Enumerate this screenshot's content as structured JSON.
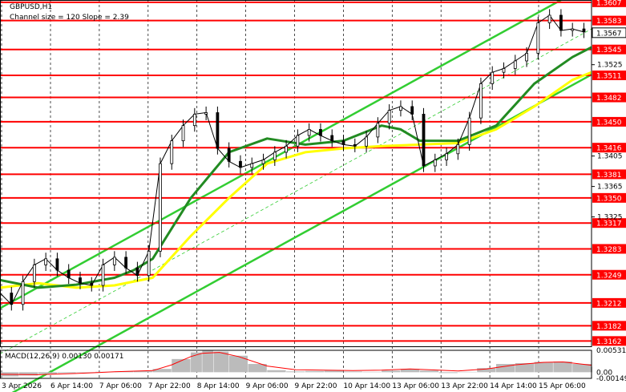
{
  "chart_data": [
    {
      "type": "candlestick",
      "symbol_label": "GBPUSD,H1",
      "channel_label": "Channel size = 120 Slope = 2.39",
      "current_price": "1.3567",
      "ylim": [
        1.3155,
        1.361
      ],
      "yticks": [
        "1.3525",
        "1.3405",
        "1.3365",
        "1.3325"
      ],
      "levels": [
        "1.3607",
        "1.3583",
        "1.3545",
        "1.3511",
        "1.3482",
        "1.3450",
        "1.3416",
        "1.3381",
        "1.3350",
        "1.3317",
        "1.3283",
        "1.3249",
        "1.3212",
        "1.3182",
        "1.3162"
      ],
      "x_labels": [
        "3 Apr 2026",
        "6 Apr 14:00",
        "7 Apr 06:00",
        "7 Apr 22:00",
        "8 Apr 14:00",
        "9 Apr 06:00",
        "9 Apr 22:00",
        "10 Apr 14:00",
        "13 Apr 06:00",
        "13 Apr 22:00",
        "14 Apr 14:00",
        "15 Apr 06:00"
      ],
      "close_points": [
        [
          0,
          1.3225
        ],
        [
          6,
          1.321
        ],
        [
          12,
          1.324
        ],
        [
          18,
          1.3262
        ],
        [
          24,
          1.327
        ],
        [
          30,
          1.3255
        ],
        [
          36,
          1.3245
        ],
        [
          42,
          1.3238
        ],
        [
          48,
          1.3235
        ],
        [
          54,
          1.3262
        ],
        [
          60,
          1.3272
        ],
        [
          66,
          1.3258
        ],
        [
          72,
          1.3248
        ],
        [
          78,
          1.328
        ],
        [
          84,
          1.3395
        ],
        [
          90,
          1.3425
        ],
        [
          96,
          1.3445
        ],
        [
          102,
          1.346
        ],
        [
          108,
          1.3462
        ],
        [
          114,
          1.3415
        ],
        [
          120,
          1.3398
        ],
        [
          126,
          1.339
        ],
        [
          132,
          1.3395
        ],
        [
          138,
          1.34
        ],
        [
          144,
          1.341
        ],
        [
          150,
          1.3418
        ],
        [
          156,
          1.3432
        ],
        [
          162,
          1.344
        ],
        [
          168,
          1.3432
        ],
        [
          174,
          1.3425
        ],
        [
          180,
          1.342
        ],
        [
          186,
          1.3418
        ],
        [
          192,
          1.343
        ],
        [
          198,
          1.3448
        ],
        [
          204,
          1.3465
        ],
        [
          210,
          1.347
        ],
        [
          216,
          1.346
        ],
        [
          222,
          1.3392
        ],
        [
          228,
          1.34
        ],
        [
          234,
          1.3408
        ],
        [
          240,
          1.342
        ],
        [
          246,
          1.3455
        ],
        [
          252,
          1.35
        ],
        [
          258,
          1.3515
        ],
        [
          264,
          1.352
        ],
        [
          270,
          1.353
        ],
        [
          276,
          1.354
        ],
        [
          282,
          1.358
        ],
        [
          288,
          1.359
        ],
        [
          294,
          1.357
        ],
        [
          300,
          1.3572
        ],
        [
          306,
          1.3568
        ]
      ],
      "series": [
        {
          "name": "",
          "color": "#ffff00",
          "values": [
            [
              0,
              1.3232
            ],
            [
              20,
              1.3238
            ],
            [
              40,
              1.3232
            ],
            [
              60,
              1.3235
            ],
            [
              80,
              1.3245
            ],
            [
              100,
              1.33
            ],
            [
              120,
              1.335
            ],
            [
              140,
              1.3395
            ],
            [
              160,
              1.341
            ],
            [
              180,
              1.3415
            ],
            [
              200,
              1.3418
            ],
            [
              220,
              1.342
            ],
            [
              240,
              1.3422
            ],
            [
              260,
              1.344
            ],
            [
              280,
              1.347
            ],
            [
              300,
              1.3505
            ],
            [
              310,
              1.3515
            ]
          ]
        },
        {
          "name": "",
          "color": "#228b22",
          "values": [
            [
              0,
              1.3242
            ],
            [
              20,
              1.3232
            ],
            [
              40,
              1.3236
            ],
            [
              60,
              1.3245
            ],
            [
              70,
              1.3255
            ],
            [
              80,
              1.327
            ],
            [
              100,
              1.335
            ],
            [
              120,
              1.341
            ],
            [
              140,
              1.3428
            ],
            [
              160,
              1.342
            ],
            [
              180,
              1.3425
            ],
            [
              200,
              1.3445
            ],
            [
              210,
              1.344
            ],
            [
              220,
              1.3425
            ],
            [
              240,
              1.3425
            ],
            [
              260,
              1.3445
            ],
            [
              280,
              1.35
            ],
            [
              300,
              1.3535
            ],
            [
              310,
              1.3548
            ]
          ]
        }
      ],
      "channel": {
        "lower": [
          [
            0,
            1.3085
          ],
          [
            310,
            1.3512
          ]
        ],
        "upper": [
          [
            0,
            1.3205
          ],
          [
            310,
            1.3632
          ]
        ]
      },
      "macd": {
        "label": "MACD(12,26,9) 0.00130 0.00171",
        "yticks": [
          "0.00531",
          "0.00",
          "-0.00149"
        ],
        "ylim": [
          -0.00149,
          0.00531
        ],
        "histogram": [
          [
            0,
            -0.001
          ],
          [
            10,
            -0.0008
          ],
          [
            20,
            -0.0004
          ],
          [
            30,
            -0.0002
          ],
          [
            40,
            0.0
          ],
          [
            50,
            0.0001
          ],
          [
            60,
            0.0002
          ],
          [
            70,
            0.0003
          ],
          [
            80,
            0.0008
          ],
          [
            90,
            0.0032
          ],
          [
            100,
            0.0048
          ],
          [
            106,
            0.0052
          ],
          [
            112,
            0.005
          ],
          [
            120,
            0.004
          ],
          [
            130,
            0.002
          ],
          [
            140,
            0.0005
          ],
          [
            150,
            0.0002
          ],
          [
            160,
            0.0003
          ],
          [
            170,
            0.0004
          ],
          [
            180,
            0.0002
          ],
          [
            190,
            0.0001
          ],
          [
            200,
            0.0004
          ],
          [
            210,
            0.0008
          ],
          [
            220,
            0.0004
          ],
          [
            230,
            -0.0002
          ],
          [
            240,
            0.0001
          ],
          [
            250,
            0.001
          ],
          [
            260,
            0.002
          ],
          [
            270,
            0.0022
          ],
          [
            280,
            0.0025
          ],
          [
            290,
            0.0026
          ],
          [
            300,
            0.002
          ],
          [
            310,
            0.0013
          ]
        ],
        "signal": [
          [
            0,
            -0.0005
          ],
          [
            20,
            -0.0006
          ],
          [
            40,
            -0.0003
          ],
          [
            60,
            0.0001
          ],
          [
            80,
            0.0004
          ],
          [
            90,
            0.0018
          ],
          [
            100,
            0.0038
          ],
          [
            106,
            0.0046
          ],
          [
            115,
            0.0048
          ],
          [
            125,
            0.0038
          ],
          [
            140,
            0.0015
          ],
          [
            155,
            0.0006
          ],
          [
            170,
            0.0005
          ],
          [
            185,
            0.0004
          ],
          [
            200,
            0.0005
          ],
          [
            215,
            0.0008
          ],
          [
            225,
            0.0006
          ],
          [
            240,
            0.0003
          ],
          [
            255,
            0.0008
          ],
          [
            270,
            0.0018
          ],
          [
            285,
            0.0024
          ],
          [
            295,
            0.0025
          ],
          [
            310,
            0.0017
          ]
        ]
      }
    }
  ],
  "colors": {
    "level_line": "#ff0000",
    "channel": "#32cd32",
    "candles": "#000000",
    "histogram": "#bbbbbb",
    "macd_signal": "#ff0000"
  }
}
